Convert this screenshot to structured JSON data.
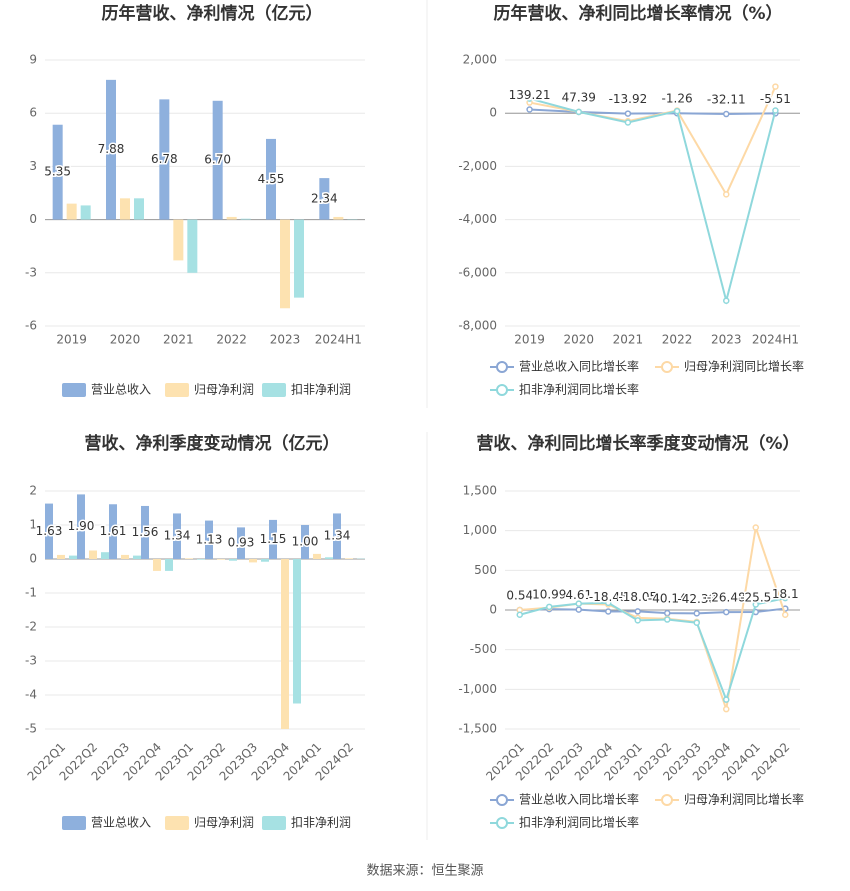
{
  "chart_data": [
    {
      "type": "bar",
      "title": "历年营收、净利情况（亿元）",
      "categories": [
        "2019",
        "2020",
        "2021",
        "2022",
        "2023",
        "2024H1"
      ],
      "series": [
        {
          "name": "营业总收入",
          "color": "#8eb0dd",
          "values": [
            5.35,
            7.88,
            6.78,
            6.7,
            4.55,
            2.34
          ],
          "value_labels": [
            "5.35",
            "7.88",
            "6.78",
            "6.70",
            "4.55",
            "2.34"
          ]
        },
        {
          "name": "归母净利润",
          "color": "#fde2b0",
          "values": [
            0.9,
            1.2,
            -2.3,
            0.15,
            -5.0,
            0.15
          ]
        },
        {
          "name": "扣非净利润",
          "color": "#a6e1e3",
          "values": [
            0.8,
            1.2,
            -3.0,
            0.05,
            -4.4,
            0.02
          ]
        }
      ],
      "ylim": [
        -6,
        9
      ],
      "yticks": [
        -6,
        -3,
        0,
        3,
        6,
        9
      ],
      "grid": true
    },
    {
      "type": "line",
      "title": "历年营收、净利同比增长率情况（%）",
      "categories": [
        "2019",
        "2020",
        "2021",
        "2022",
        "2023",
        "2024H1"
      ],
      "series": [
        {
          "name": "营业总收入同比增长率",
          "color": "#8aa6d4",
          "values": [
            139.21,
            47.39,
            -13.92,
            -1.26,
            -32.11,
            -5.51
          ]
        },
        {
          "name": "归母净利润同比增长率",
          "color": "#fdd9a6",
          "values": [
            400,
            50,
            -300,
            100,
            -3050,
            1000
          ]
        },
        {
          "name": "扣非净利润同比增长率",
          "color": "#8fd8dc",
          "values": [
            550,
            50,
            -350,
            80,
            -7050,
            100
          ]
        }
      ],
      "ylim": [
        -8000,
        2000
      ],
      "yticks": [
        {
          "value": -8000,
          "label": "-8,000"
        },
        {
          "value": -6000,
          "label": "-6,000"
        },
        {
          "value": -4000,
          "label": "-4,000"
        },
        {
          "value": -2000,
          "label": "-2,000"
        },
        0,
        {
          "value": 2000,
          "label": "2,000"
        }
      ],
      "grid": true
    },
    {
      "type": "bar",
      "title": "营收、净利季度变动情况（亿元）",
      "categories": [
        "2022Q1",
        "2022Q2",
        "2022Q3",
        "2022Q4",
        "2023Q1",
        "2023Q2",
        "2023Q3",
        "2023Q4",
        "2024Q1",
        "2024Q2"
      ],
      "series": [
        {
          "name": "营业总收入",
          "color": "#8eb0dd",
          "values": [
            1.63,
            1.9,
            1.61,
            1.56,
            1.34,
            1.13,
            0.93,
            1.15,
            1.0,
            1.34
          ],
          "value_labels": [
            "1.63",
            "1.90",
            "1.61",
            "1.56",
            "1.34",
            "1.13",
            "0.93",
            "1.15",
            "1.00",
            "1.34"
          ]
        },
        {
          "name": "归母净利润",
          "color": "#fde2b0",
          "values": [
            0.12,
            0.25,
            0.12,
            -0.35,
            0.02,
            -0.02,
            -0.1,
            -5.0,
            0.15,
            0.02
          ]
        },
        {
          "name": "扣非净利润",
          "color": "#a6e1e3",
          "values": [
            0.1,
            0.2,
            0.1,
            -0.35,
            -0.02,
            -0.05,
            -0.08,
            -4.25,
            0.05,
            0.01
          ]
        }
      ],
      "ylim": [
        -5,
        2
      ],
      "yticks": [
        -5,
        -4,
        -3,
        -2,
        -1,
        0,
        1,
        2
      ],
      "grid": true
    },
    {
      "type": "line",
      "title": "营收、净利同比增长率季度变动情况（%）",
      "categories": [
        "2022Q1",
        "2022Q2",
        "2022Q3",
        "2022Q4",
        "2023Q1",
        "2023Q2",
        "2023Q3",
        "2023Q4",
        "2024Q1",
        "2024Q2"
      ],
      "series": [
        {
          "name": "营业总收入同比增长率",
          "color": "#8aa6d4",
          "values": [
            0.54,
            10.99,
            4.61,
            -18.45,
            -18.05,
            -40.14,
            -42.38,
            -26.48,
            -25.5,
            18.1
          ]
        },
        {
          "name": "归母净利润同比增长率",
          "color": "#fdd9a6",
          "values": [
            0,
            30,
            80,
            70,
            -100,
            -110,
            -150,
            -1250,
            1040,
            -60
          ]
        },
        {
          "name": "扣非净利润同比增长率",
          "color": "#8fd8dc",
          "values": [
            -60,
            40,
            80,
            90,
            -130,
            -120,
            -160,
            -1130,
            70,
            150
          ]
        }
      ],
      "ylim": [
        -1500,
        1500
      ],
      "yticks": [
        {
          "value": -1500,
          "label": "-1,500"
        },
        {
          "value": -1000,
          "label": "-1,000"
        },
        -500,
        0,
        500,
        {
          "value": 1000,
          "label": "1,000"
        },
        {
          "value": 1500,
          "label": "1,500"
        }
      ],
      "grid": true
    }
  ],
  "source": "数据来源：恒生聚源"
}
